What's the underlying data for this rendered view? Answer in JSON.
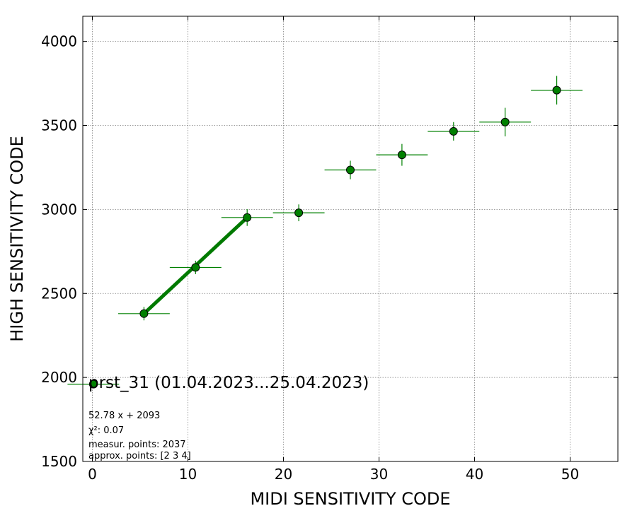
{
  "chart_data": {
    "type": "scatter",
    "title": "",
    "xlabel": "MIDI SENSITIVITY CODE",
    "ylabel": "HIGH SENSITIVITY CODE",
    "xlim": [
      -1,
      55
    ],
    "ylim": [
      1500,
      4150
    ],
    "xticks": [
      0,
      10,
      20,
      30,
      40,
      50
    ],
    "yticks": [
      1500,
      2000,
      2500,
      3000,
      3500,
      4000
    ],
    "grid": true,
    "colors": {
      "marker": "#008000",
      "errorbar": "#008000",
      "fit": "#007a00",
      "grid": "#808080"
    },
    "series": [
      {
        "marker": "circle",
        "points": [
          {
            "x": 0.1,
            "y": 1960,
            "xerr": 2.7,
            "yerr": 0
          },
          {
            "x": 5.4,
            "y": 2380,
            "xerr": 2.7,
            "yerr": 40
          },
          {
            "x": 10.8,
            "y": 2655,
            "xerr": 2.7,
            "yerr": 40
          },
          {
            "x": 16.2,
            "y": 2952,
            "xerr": 2.7,
            "yerr": 50
          },
          {
            "x": 21.6,
            "y": 2980,
            "xerr": 2.7,
            "yerr": 50
          },
          {
            "x": 27.0,
            "y": 3235,
            "xerr": 2.7,
            "yerr": 55
          },
          {
            "x": 32.4,
            "y": 3325,
            "xerr": 2.7,
            "yerr": 65
          },
          {
            "x": 37.8,
            "y": 3465,
            "xerr": 2.7,
            "yerr": 55
          },
          {
            "x": 43.2,
            "y": 3520,
            "xerr": 2.7,
            "yerr": 85
          },
          {
            "x": 48.6,
            "y": 3710,
            "xerr": 2.7,
            "yerr": 85
          }
        ]
      }
    ],
    "fit_line": {
      "x": [
        5.4,
        16.2
      ],
      "y": [
        2380,
        2952
      ]
    },
    "annotations": {
      "title": "prst_31 (01.04.2023...25.04.2023)",
      "lines": [
        "52.78 x + 2093",
        "χ²: 0.07",
        "measur. points: 2037",
        "approx. points: [2 3 4]"
      ]
    }
  }
}
